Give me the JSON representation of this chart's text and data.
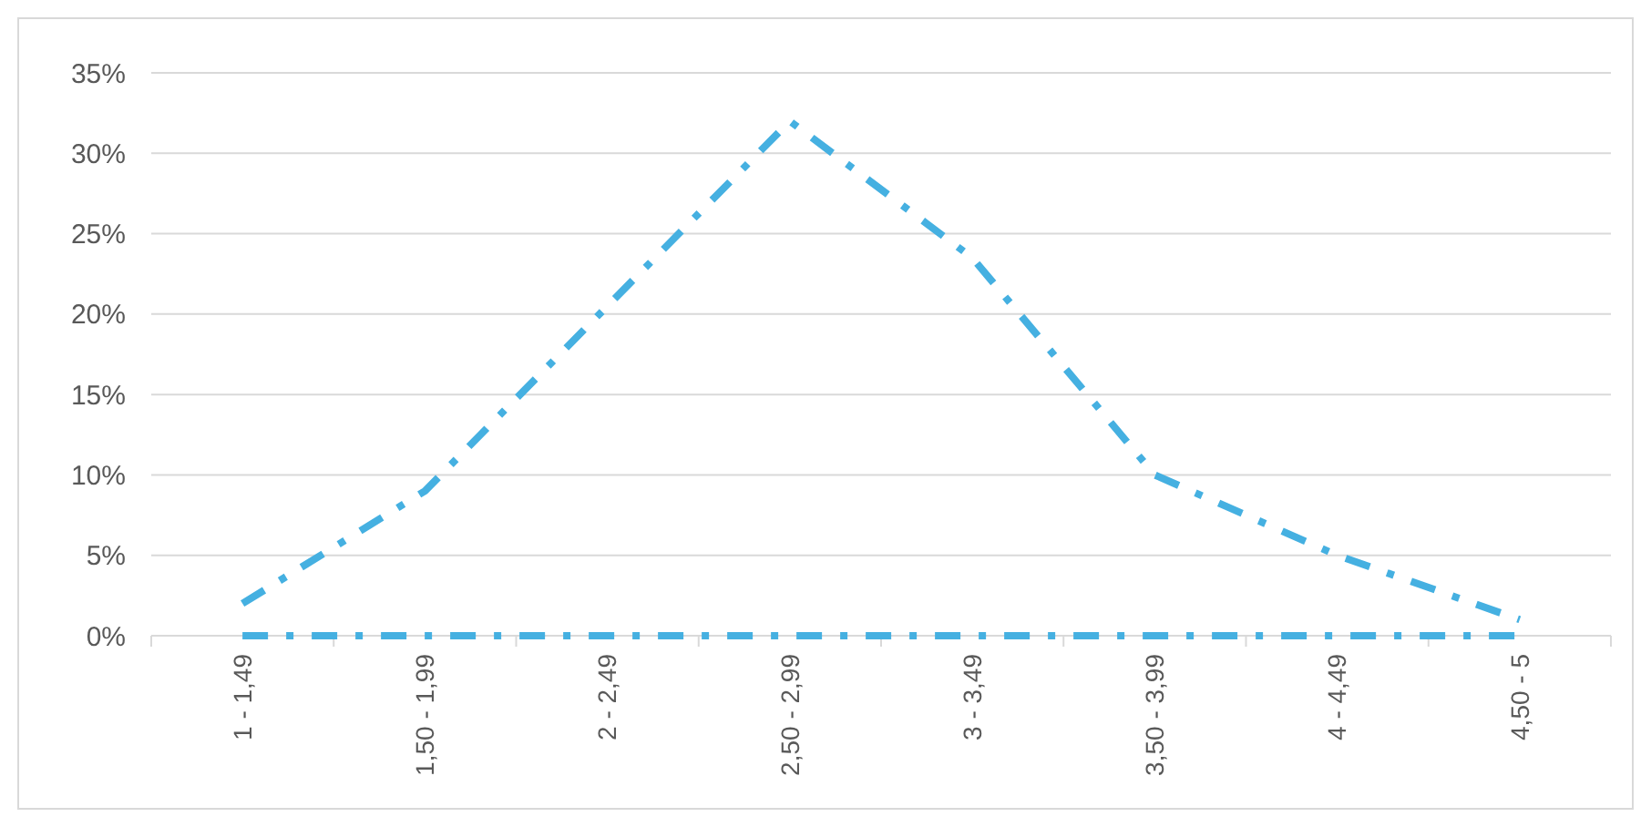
{
  "chart_data": {
    "type": "line",
    "categories": [
      "1 - 1,49",
      "1,50 - 1,99",
      "2 - 2,49",
      "2,50 - 2,99",
      "3 - 3,49",
      "3,50 - 3,99",
      "4 - 4,49",
      "4,50 - 5"
    ],
    "series": [
      {
        "color": "#45b0e1",
        "values": [
          2,
          9,
          20.5,
          32,
          23.5,
          10,
          5,
          1
        ]
      },
      {
        "color": "#45b0e1",
        "values": [
          0,
          0,
          0,
          0,
          0,
          0,
          0,
          0
        ]
      }
    ],
    "ylim": [
      0,
      35
    ],
    "yticks": [
      {
        "value": 0,
        "label": "0%"
      },
      {
        "value": 5,
        "label": "5%"
      },
      {
        "value": 10,
        "label": "10%"
      },
      {
        "value": 15,
        "label": "15%"
      },
      {
        "value": 20,
        "label": "20%"
      },
      {
        "value": 25,
        "label": "25%"
      },
      {
        "value": 30,
        "label": "30%"
      },
      {
        "value": 35,
        "label": "35%"
      }
    ],
    "grid": "y",
    "marker": "none",
    "line_style": "dashdot"
  }
}
